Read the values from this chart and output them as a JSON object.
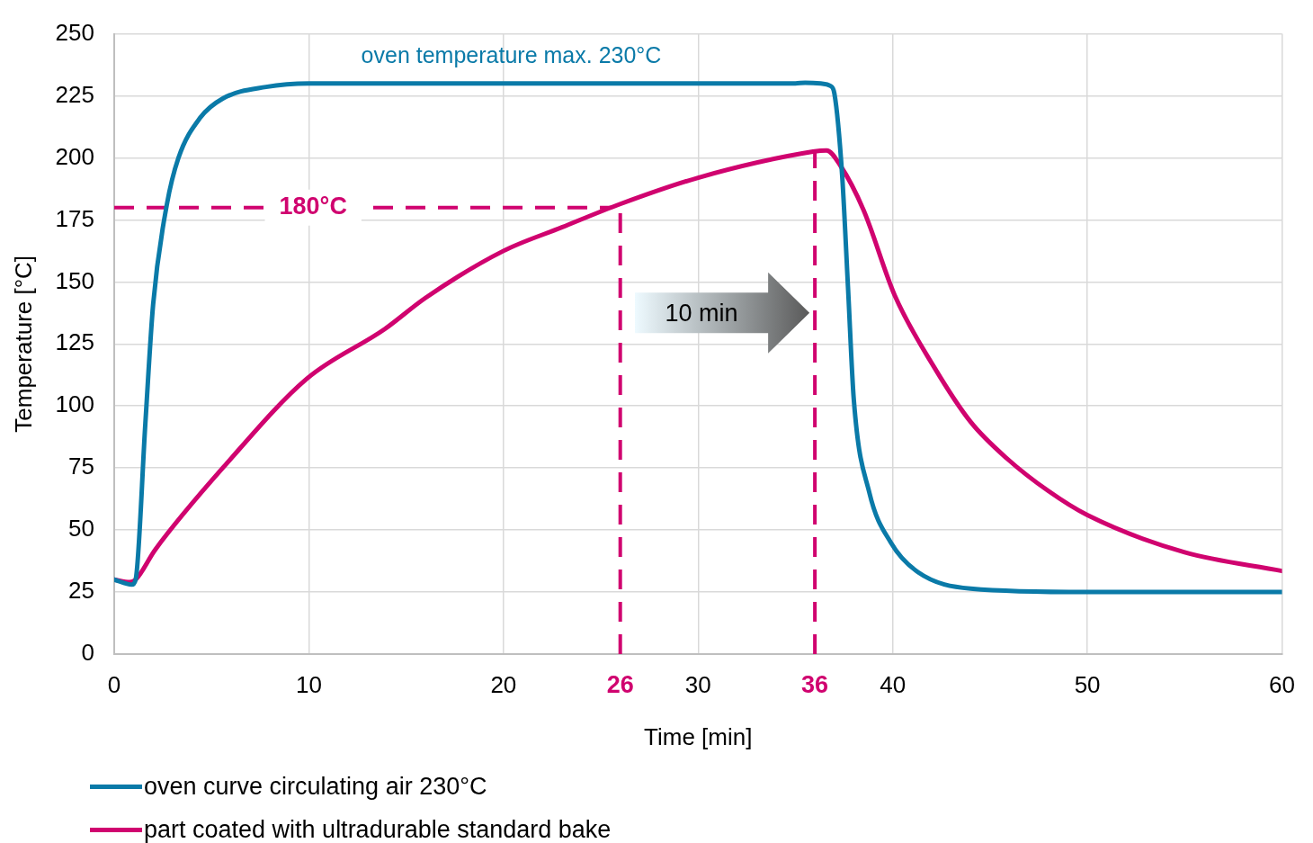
{
  "chart_data": {
    "type": "line",
    "xlabel": "Time [min]",
    "ylabel": "Temperature [°C]",
    "xlim": [
      0,
      60
    ],
    "xticks": [
      0,
      10,
      20,
      30,
      40,
      50,
      60
    ],
    "ylim": [
      0,
      250
    ],
    "yticks": [
      0,
      25,
      50,
      75,
      100,
      125,
      150,
      175,
      200,
      225,
      250
    ],
    "grid": true,
    "legend": "bottom left",
    "marker": "none",
    "line_style": "solid",
    "series": [
      {
        "name": "oven curve circulating air 230°C",
        "color": "#0a7aa8",
        "x": [
          0,
          0.9,
          1.1,
          1.6,
          2.0,
          2.7,
          3.3,
          4.4,
          5.6,
          7.8,
          10,
          20,
          30,
          35,
          35.5,
          36.3,
          36.8,
          37.0,
          37.4,
          37.7,
          38.0,
          38.8,
          39.9,
          41.3,
          44,
          50,
          60
        ],
        "values": [
          30,
          28,
          30,
          93,
          141,
          181,
          200,
          216,
          224,
          228.6,
          230,
          230,
          230,
          230,
          230.3,
          230,
          229,
          226,
          193,
          148,
          102.5,
          65,
          45,
          33,
          26.4,
          25,
          25
        ]
      },
      {
        "name": "part coated with ultradurable standard bake",
        "color": "#d0036f",
        "x": [
          0,
          0.8,
          1.1,
          2.1,
          5.8,
          9.9,
          13.9,
          16,
          20,
          23,
          26,
          30,
          35.9,
          36.6,
          37.3,
          38.5,
          40.1,
          42.1,
          44,
          45.9,
          48,
          50,
          55,
          60
        ],
        "values": [
          30,
          29,
          30,
          42,
          77,
          111,
          131,
          143.6,
          162.5,
          172,
          181.4,
          192,
          202.5,
          203,
          197,
          179,
          144.6,
          116,
          93.6,
          78.6,
          65.7,
          56,
          41,
          33.5
        ]
      }
    ],
    "ref_lines": [
      {
        "axis": "y",
        "value": 180,
        "label": "180°C",
        "color": "#d0036f",
        "line_style": "dashed"
      },
      {
        "axis": "x",
        "value": 26,
        "label": "26",
        "color": "#d0036f",
        "line_style": "dashed"
      },
      {
        "axis": "x",
        "value": 36,
        "label": "36",
        "color": "#d0036f",
        "line_style": "dashed"
      }
    ],
    "annotations": [
      "oven temperature max. 230°C",
      "10 min"
    ]
  }
}
